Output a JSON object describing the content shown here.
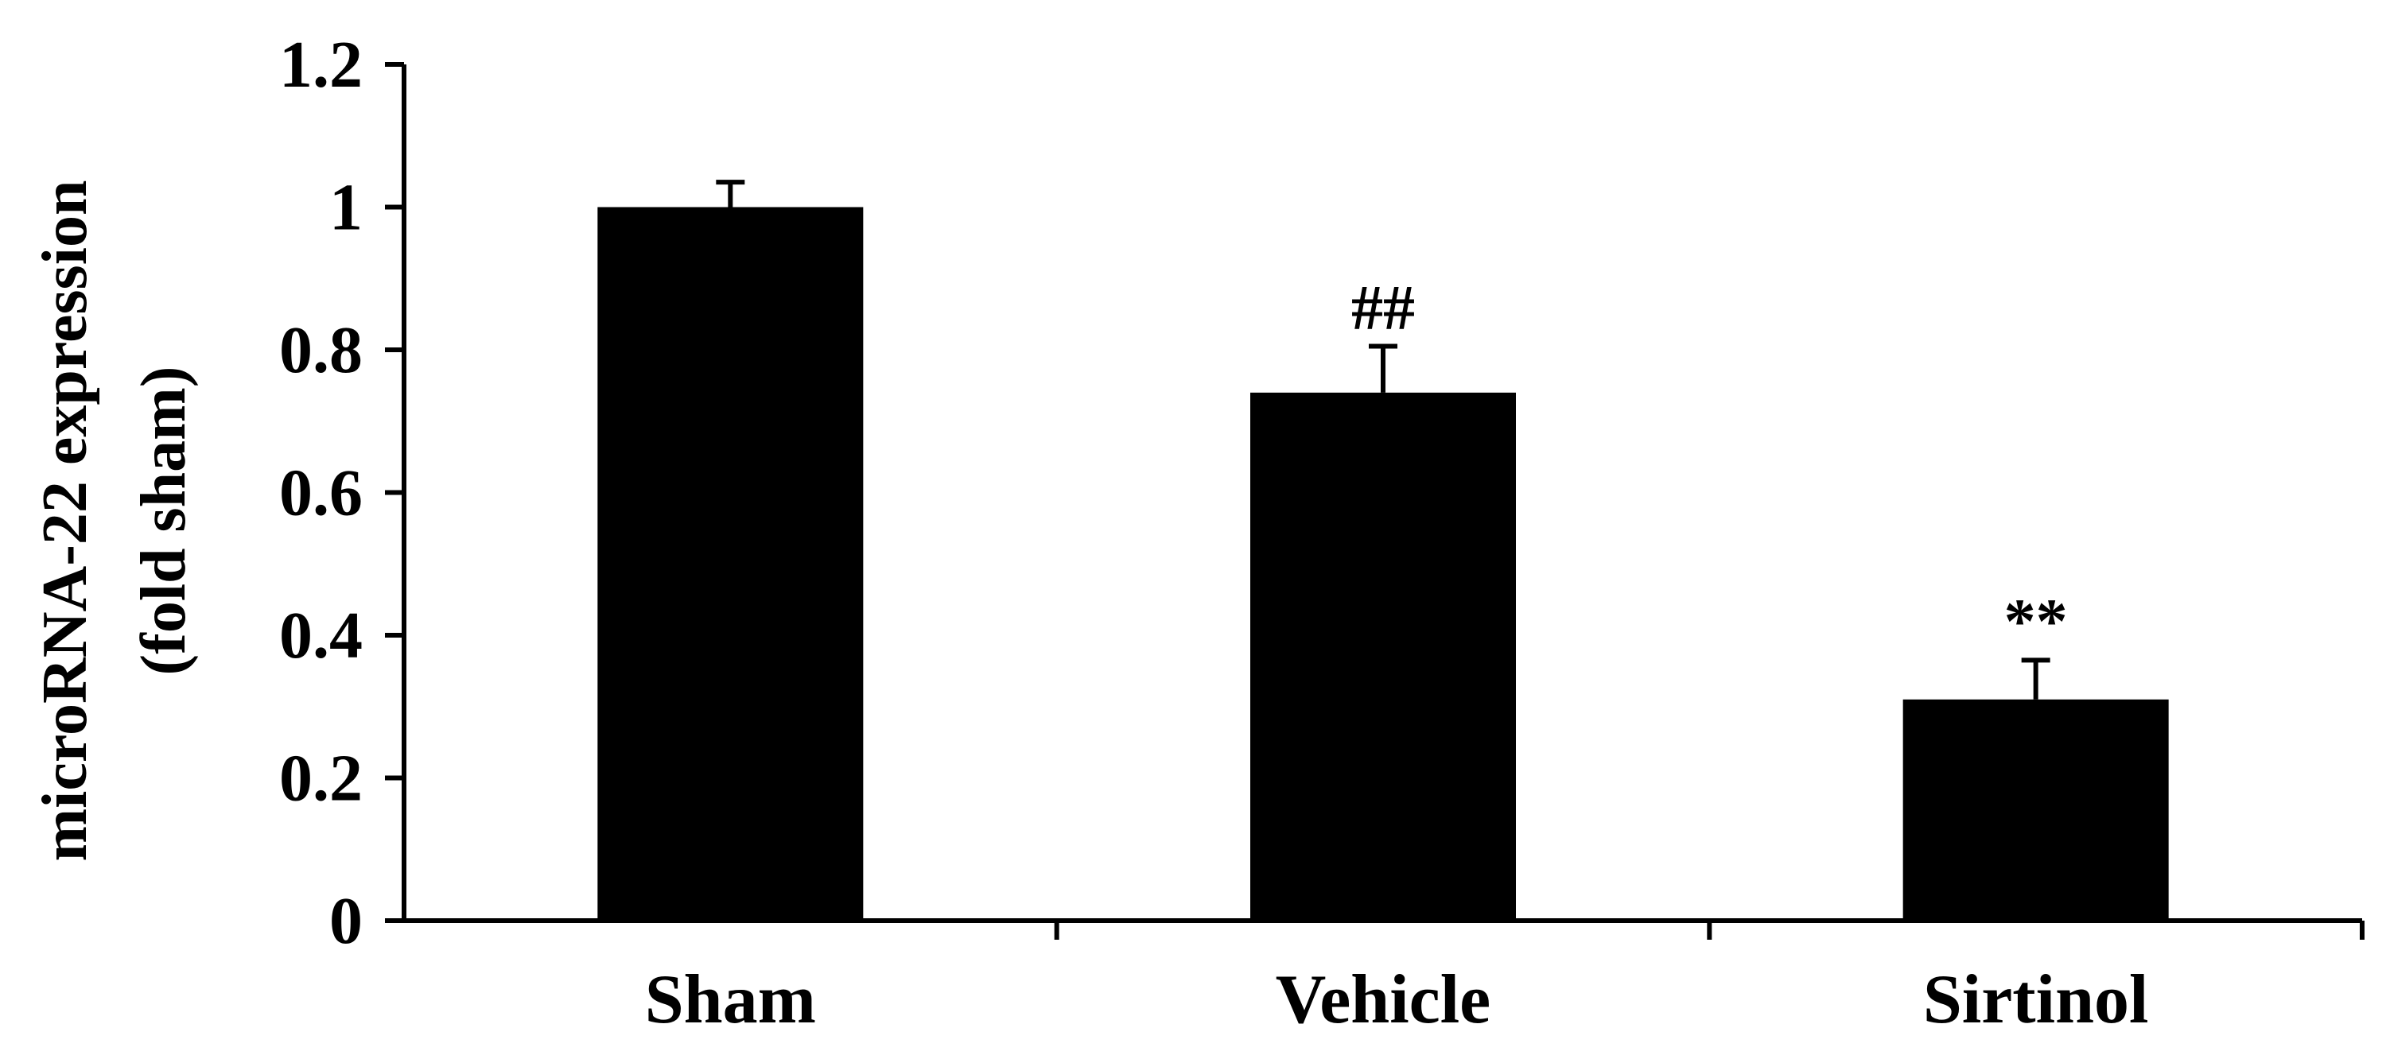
{
  "chart_data": {
    "type": "bar",
    "title": "",
    "xlabel": "",
    "ylabel": [
      "microRNA-22 expression",
      "(fold sham)"
    ],
    "categories": [
      "Sham",
      "Vehicle",
      "Sirtinol"
    ],
    "values": [
      1.0,
      0.74,
      0.31
    ],
    "error": [
      0.035,
      0.065,
      0.055
    ],
    "annotations": [
      "",
      "##",
      "**"
    ],
    "ylim": [
      0,
      1.2
    ],
    "yticks": [
      0,
      0.2,
      0.4,
      0.6,
      0.8,
      1.0,
      1.2
    ],
    "ytick_labels": [
      "0",
      "0.2",
      "0.4",
      "0.6",
      "0.8",
      "1",
      "1.2"
    ],
    "bar_color": "#000000",
    "grid": false,
    "legend": "none"
  }
}
